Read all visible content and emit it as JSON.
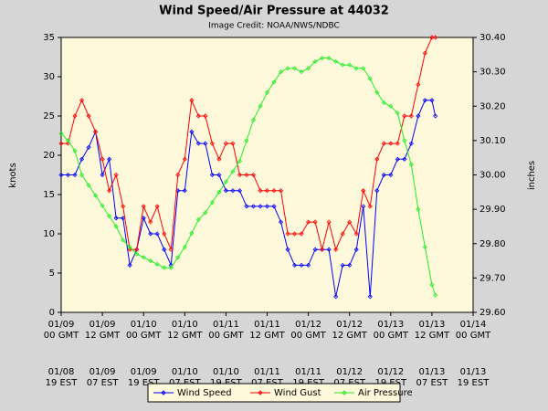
{
  "chart_data": {
    "type": "line",
    "title": "Wind Speed/Air Pressure at 44032",
    "subtitle": "Image Credit: NOAA/NWS/NDBC",
    "y_label": "knots",
    "y2_label": "inches",
    "x": [
      0,
      2,
      4,
      6,
      8,
      10,
      12,
      14,
      16,
      18,
      20,
      22,
      24,
      26,
      28,
      30,
      32,
      34,
      36,
      38,
      40,
      42,
      44,
      46,
      48,
      50,
      52,
      54,
      56,
      58,
      60,
      62,
      64,
      66,
      68,
      70,
      72,
      74,
      76,
      78,
      80,
      82,
      84,
      86,
      88,
      90,
      92,
      94,
      96,
      98,
      100,
      102,
      104,
      106,
      108,
      109
    ],
    "xlim": [
      0,
      120
    ],
    "xticks": [
      {
        "value": 0,
        "label": "01/09",
        "sublabel": "00 GMT",
        "local": "01/08",
        "local_sub": "19 EST"
      },
      {
        "value": 12,
        "label": "01/09",
        "sublabel": "12 GMT",
        "local": "01/09",
        "local_sub": "07 EST"
      },
      {
        "value": 24,
        "label": "01/10",
        "sublabel": "00 GMT",
        "local": "01/09",
        "local_sub": "19 EST"
      },
      {
        "value": 36,
        "label": "01/10",
        "sublabel": "12 GMT",
        "local": "01/10",
        "local_sub": "07 EST"
      },
      {
        "value": 48,
        "label": "01/11",
        "sublabel": "00 GMT",
        "local": "01/10",
        "local_sub": "19 EST"
      },
      {
        "value": 60,
        "label": "01/11",
        "sublabel": "12 GMT",
        "local": "01/11",
        "local_sub": "07 EST"
      },
      {
        "value": 72,
        "label": "01/12",
        "sublabel": "00 GMT",
        "local": "01/11",
        "local_sub": "19 EST"
      },
      {
        "value": 84,
        "label": "01/12",
        "sublabel": "12 GMT",
        "local": "01/12",
        "local_sub": "07 EST"
      },
      {
        "value": 96,
        "label": "01/13",
        "sublabel": "00 GMT",
        "local": "01/12",
        "local_sub": "19 EST"
      },
      {
        "value": 108,
        "label": "01/13",
        "sublabel": "12 GMT",
        "local": "01/13",
        "local_sub": "07 EST"
      },
      {
        "value": 120,
        "label": "01/14",
        "sublabel": "00 GMT",
        "local": "01/13",
        "local_sub": "19 EST"
      }
    ],
    "ylim": [
      0,
      35
    ],
    "yticks": [
      0,
      5,
      10,
      15,
      20,
      25,
      30,
      35
    ],
    "y2lim": [
      29.6,
      30.4
    ],
    "y2ticks": [
      {
        "value": 29.6,
        "label": "29.60"
      },
      {
        "value": 29.7,
        "label": "29.70"
      },
      {
        "value": 29.8,
        "label": "29.80"
      },
      {
        "value": 29.9,
        "label": "29.90"
      },
      {
        "value": 30.0,
        "label": "30.00"
      },
      {
        "value": 30.1,
        "label": "30.10"
      },
      {
        "value": 30.2,
        "label": "30.20"
      },
      {
        "value": 30.3,
        "label": "30.30"
      },
      {
        "value": 30.4,
        "label": "30.40"
      }
    ],
    "series": [
      {
        "name": "Wind Speed",
        "color": "#0000ff",
        "values": [
          17.5,
          17.5,
          17.5,
          19.5,
          21,
          23,
          17.5,
          19.5,
          12,
          12,
          6,
          8,
          12,
          10,
          10,
          8,
          6,
          15.5,
          15.5,
          23,
          21.5,
          21.5,
          17.5,
          17.5,
          15.5,
          15.5,
          15.5,
          13.5,
          13.5,
          13.5,
          13.5,
          13.5,
          11.5,
          8,
          6,
          6,
          6,
          8,
          8,
          8,
          2,
          6,
          6,
          8,
          13.5,
          2,
          15.5,
          17.5,
          17.5,
          19.5,
          19.5,
          21.5,
          25,
          27,
          27,
          25
        ]
      },
      {
        "name": "Wind Gust",
        "color": "#ff0000",
        "values": [
          21.5,
          21.5,
          25,
          27,
          25,
          23,
          19.5,
          15.5,
          17.5,
          13.5,
          8,
          8,
          13.5,
          11.5,
          13.5,
          10,
          8,
          17.5,
          19.5,
          27,
          25,
          25,
          21.5,
          19.5,
          21.5,
          21.5,
          17.5,
          17.5,
          17.5,
          15.5,
          15.5,
          15.5,
          15.5,
          10,
          10,
          10,
          11.5,
          11.5,
          8,
          11.5,
          8,
          10,
          11.5,
          10,
          15.5,
          13.5,
          19.5,
          21.5,
          21.5,
          21.5,
          25,
          25,
          29,
          33,
          35,
          35
        ]
      },
      {
        "name": "Air Pressure",
        "color": "#22ee22",
        "axis": "y2",
        "values": [
          30.12,
          30.1,
          30.07,
          30.0,
          29.97,
          29.94,
          29.91,
          29.88,
          29.85,
          29.81,
          29.79,
          29.77,
          29.76,
          29.75,
          29.74,
          29.73,
          29.73,
          29.76,
          29.79,
          29.83,
          29.87,
          29.89,
          29.92,
          29.95,
          29.98,
          30.01,
          30.04,
          30.1,
          30.16,
          30.2,
          30.24,
          30.27,
          30.3,
          30.31,
          30.31,
          30.3,
          30.31,
          30.33,
          30.34,
          30.34,
          30.33,
          30.32,
          30.32,
          30.31,
          30.31,
          30.28,
          30.24,
          30.21,
          30.2,
          30.18,
          30.1,
          30.03,
          29.9,
          29.79,
          29.68,
          29.65
        ]
      }
    ]
  }
}
